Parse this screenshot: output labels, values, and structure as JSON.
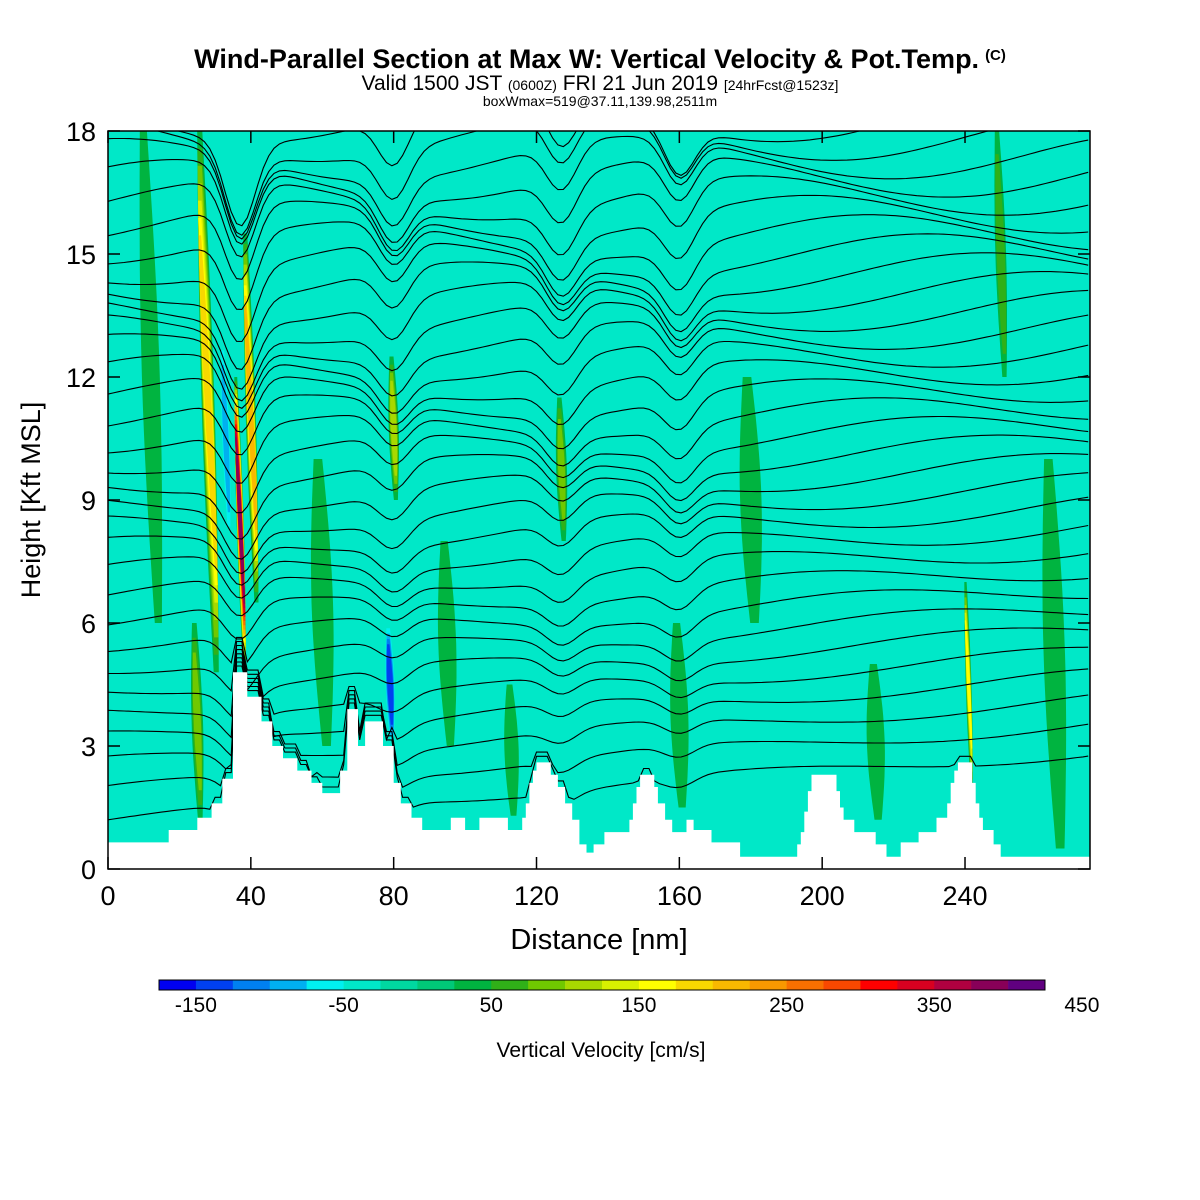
{
  "titles": {
    "main": "Wind-Parallel Section at Max W: Vertical Velocity & Pot.Temp.",
    "main_tag": "(C)",
    "valid_prefix": "Valid 1500 JST",
    "valid_utc": "(0600Z)",
    "valid_date": "FRI 21 Jun 2019",
    "forecast": "[24hrFcst@1523z]",
    "box_info": "boxWmax=519@37.11,139.98,2511m"
  },
  "chart_data": {
    "type": "heatmap",
    "xlabel": "Distance [nm]",
    "ylabel": "Height [Kft MSL]",
    "xlim": [
      0,
      275
    ],
    "ylim": [
      0,
      18
    ],
    "x_ticks": [
      0,
      40,
      80,
      120,
      160,
      200,
      240
    ],
    "y_ticks": [
      0,
      3,
      6,
      9,
      12,
      15,
      18
    ],
    "x_tick_labels": [
      "0",
      "40",
      "80",
      "120",
      "160",
      "200",
      "240"
    ],
    "y_tick_labels": [
      "0",
      "3",
      "6",
      "9",
      "12",
      "15",
      "18"
    ],
    "background_color": "#00e8c8",
    "colorbar": {
      "label": "Vertical Velocity [cm/s]",
      "min": -175,
      "step": 25,
      "tick_labels": [
        "-150",
        "-50",
        "50",
        "150",
        "250",
        "350",
        "450"
      ],
      "tick_values": [
        -150,
        -50,
        50,
        150,
        250,
        350,
        450
      ],
      "colors": [
        "#0000f0",
        "#0040f0",
        "#0080f0",
        "#00b0f0",
        "#00f0f0",
        "#00e8c8",
        "#00d8a0",
        "#00c878",
        "#00b440",
        "#30b018",
        "#70c800",
        "#a8d800",
        "#d8f000",
        "#ffff00",
        "#f8d800",
        "#f8b800",
        "#f89800",
        "#f87000",
        "#f84800",
        "#ff0000",
        "#d80020",
        "#b00040",
        "#880058",
        "#600080"
      ]
    },
    "terrain_kft": [
      [
        0,
        0.65
      ],
      [
        16,
        0.65
      ],
      [
        17,
        0.95
      ],
      [
        24,
        0.95
      ],
      [
        25,
        1.25
      ],
      [
        28,
        1.25
      ],
      [
        29,
        1.6
      ],
      [
        31,
        1.6
      ],
      [
        32,
        2.2
      ],
      [
        34,
        2.2
      ],
      [
        35,
        4.8
      ],
      [
        38,
        4.8
      ],
      [
        39,
        4.2
      ],
      [
        42,
        4.2
      ],
      [
        43,
        3.6
      ],
      [
        45,
        3.6
      ],
      [
        46,
        3.0
      ],
      [
        48,
        3.0
      ],
      [
        49,
        2.7
      ],
      [
        52,
        2.7
      ],
      [
        53,
        2.4
      ],
      [
        56,
        2.4
      ],
      [
        57,
        2.1
      ],
      [
        59,
        2.1
      ],
      [
        60,
        1.85
      ],
      [
        64,
        1.85
      ],
      [
        65,
        2.4
      ],
      [
        66,
        2.4
      ],
      [
        67,
        3.9
      ],
      [
        69,
        3.9
      ],
      [
        70,
        3.0
      ],
      [
        71,
        3.0
      ],
      [
        72,
        3.6
      ],
      [
        76,
        3.6
      ],
      [
        77,
        3.0
      ],
      [
        79,
        3.0
      ],
      [
        80,
        2.1
      ],
      [
        81,
        2.1
      ],
      [
        82,
        1.6
      ],
      [
        84,
        1.6
      ],
      [
        85,
        1.25
      ],
      [
        87,
        1.25
      ],
      [
        88,
        0.95
      ],
      [
        95,
        0.95
      ],
      [
        96,
        1.25
      ],
      [
        99,
        1.25
      ],
      [
        100,
        0.95
      ],
      [
        103,
        0.95
      ],
      [
        104,
        1.25
      ],
      [
        111,
        1.25
      ],
      [
        112,
        0.95
      ],
      [
        115,
        0.95
      ],
      [
        116,
        1.25
      ],
      [
        117,
        1.6
      ],
      [
        118,
        2.1
      ],
      [
        119,
        2.4
      ],
      [
        120,
        2.6
      ],
      [
        123,
        2.6
      ],
      [
        124,
        2.3
      ],
      [
        126,
        2.0
      ],
      [
        128,
        1.6
      ],
      [
        130,
        1.2
      ],
      [
        132,
        0.6
      ],
      [
        134,
        0.4
      ],
      [
        135,
        0.4
      ],
      [
        136,
        0.6
      ],
      [
        138,
        0.6
      ],
      [
        139,
        0.9
      ],
      [
        145,
        0.9
      ],
      [
        146,
        1.2
      ],
      [
        147,
        1.6
      ],
      [
        148,
        2.0
      ],
      [
        149,
        2.3
      ],
      [
        152,
        2.3
      ],
      [
        153,
        2.0
      ],
      [
        154,
        1.6
      ],
      [
        156,
        1.2
      ],
      [
        158,
        0.9
      ],
      [
        161,
        0.9
      ],
      [
        162,
        1.2
      ],
      [
        163,
        1.2
      ],
      [
        164,
        0.95
      ],
      [
        168,
        0.95
      ],
      [
        169,
        0.65
      ],
      [
        176,
        0.65
      ],
      [
        177,
        0.3
      ],
      [
        192,
        0.3
      ],
      [
        193,
        0.6
      ],
      [
        194,
        0.9
      ],
      [
        195,
        1.4
      ],
      [
        196,
        1.9
      ],
      [
        197,
        2.3
      ],
      [
        203,
        2.3
      ],
      [
        204,
        1.9
      ],
      [
        205,
        1.5
      ],
      [
        206,
        1.2
      ],
      [
        208,
        1.2
      ],
      [
        209,
        0.9
      ],
      [
        214,
        0.9
      ],
      [
        215,
        0.6
      ],
      [
        218,
        0.3
      ],
      [
        221,
        0.3
      ],
      [
        222,
        0.65
      ],
      [
        226,
        0.65
      ],
      [
        227,
        0.9
      ],
      [
        231,
        0.9
      ],
      [
        232,
        1.25
      ],
      [
        234,
        1.25
      ],
      [
        235,
        1.6
      ],
      [
        236,
        2.1
      ],
      [
        237,
        2.4
      ],
      [
        238,
        2.6
      ],
      [
        241,
        2.6
      ],
      [
        242,
        2.1
      ],
      [
        243,
        1.6
      ],
      [
        244,
        1.25
      ],
      [
        245,
        0.95
      ],
      [
        247,
        0.95
      ],
      [
        248,
        0.6
      ],
      [
        250,
        0.3
      ],
      [
        275,
        0.3
      ]
    ],
    "w_features": [
      {
        "x": 28,
        "z0": 4.8,
        "z1": 18.0,
        "w": 175,
        "hw": 1.8
      },
      {
        "x": 37,
        "z0": 5.0,
        "z1": 12.0,
        "w": 375,
        "hw": 1.0
      },
      {
        "x": 40,
        "z0": 6.5,
        "z1": 15.5,
        "w": 200,
        "hw": 1.4
      },
      {
        "x": 33,
        "z0": 8.0,
        "z1": 13.0,
        "w": -80,
        "hw": 1.2
      },
      {
        "x": 25,
        "z0": 1.2,
        "z1": 6.0,
        "w": 75,
        "hw": 1.6
      },
      {
        "x": 80,
        "z0": 9.0,
        "z1": 12.5,
        "w": 100,
        "hw": 1.4
      },
      {
        "x": 79,
        "z0": 3.0,
        "z1": 6.0,
        "w": -130,
        "hw": 1.4
      },
      {
        "x": 74,
        "z0": 1.0,
        "z1": 9.0,
        "w": -30,
        "hw": 3.0
      },
      {
        "x": 50,
        "z0": 5.5,
        "z1": 8.0,
        "w": -40,
        "hw": 1.5
      },
      {
        "x": 127,
        "z0": 8.0,
        "z1": 11.5,
        "w": 75,
        "hw": 1.5
      },
      {
        "x": 125,
        "z0": 6.0,
        "z1": 7.5,
        "w": -40,
        "hw": 1.3
      },
      {
        "x": 241,
        "z0": 2.0,
        "z1": 7.0,
        "w": 150,
        "hw": 0.8
      },
      {
        "x": 250,
        "z0": 12.0,
        "z1": 18.0,
        "w": 60,
        "hw": 1.5
      },
      {
        "x": 225,
        "z0": 8.0,
        "z1": 18.0,
        "w": 20,
        "hw": 3.0
      },
      {
        "x": 140,
        "z0": 10.0,
        "z1": 18.0,
        "w": -25,
        "hw": 3.0
      },
      {
        "x": 105,
        "z0": 12.0,
        "z1": 18.0,
        "w": -25,
        "hw": 3.5
      },
      {
        "x": 180,
        "z0": 6.0,
        "z1": 12.0,
        "w": 30,
        "hw": 3.0
      },
      {
        "x": 95,
        "z0": 3.0,
        "z1": 8.0,
        "w": 40,
        "hw": 2.5
      },
      {
        "x": 160,
        "z0": 1.5,
        "z1": 6.0,
        "w": 30,
        "hw": 2.5
      },
      {
        "x": 215,
        "z0": 1.2,
        "z1": 5.0,
        "w": 30,
        "hw": 2.5
      },
      {
        "x": 12,
        "z0": 6.0,
        "z1": 18.0,
        "w": 25,
        "hw": 2.5
      },
      {
        "x": 60,
        "z0": 3.0,
        "z1": 10.0,
        "w": 30,
        "hw": 3.0
      },
      {
        "x": 200,
        "z0": 12.0,
        "z1": 18.0,
        "w": -25,
        "hw": 3.0
      },
      {
        "x": 113,
        "z0": 1.3,
        "z1": 4.5,
        "w": 35,
        "hw": 2.0
      },
      {
        "x": 265,
        "z0": 0.5,
        "z1": 10.0,
        "w": 25,
        "hw": 3.0
      }
    ],
    "theta_contours": {
      "count": 32,
      "low_base_kft": 1.2,
      "top_kft": 18.3,
      "disturbance_centers_nm": [
        37,
        80,
        127,
        160
      ]
    }
  }
}
